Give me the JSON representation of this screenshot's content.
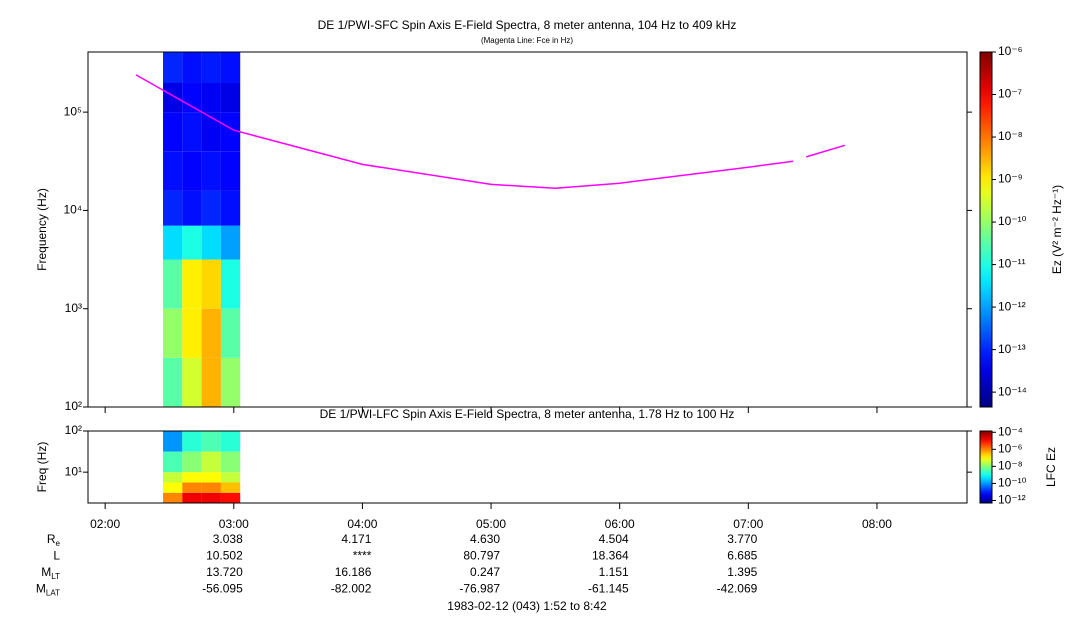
{
  "chart_data": [
    {
      "type": "heatmap",
      "title": "DE 1/PWI-SFC  Spin Axis E-Field Spectra, 8 meter antenna, 104 Hz to 409 kHz",
      "subtitle": "(Magenta Line: Fce in Hz)",
      "y_label": "Frequency (Hz)",
      "log_y": true,
      "xlim": [
        1.8667,
        8.7
      ],
      "ylim": [
        100,
        409000
      ],
      "yticks": [
        {
          "value": 100,
          "label": "10²"
        },
        {
          "value": 1000,
          "label": "10³"
        },
        {
          "value": 10000,
          "label": "10⁴"
        },
        {
          "value": 100000,
          "label": "10⁵"
        }
      ],
      "x_bins": [
        2.45,
        2.6,
        2.75,
        2.9,
        3.05
      ],
      "y_bins": [
        100,
        316,
        1000,
        3162,
        7000,
        15800,
        40000,
        100000,
        200000,
        409000
      ],
      "z": [
        [
          -10.5,
          -9.5,
          -8.5,
          -10
        ],
        [
          -10,
          -9,
          -8.5,
          -10.5
        ],
        [
          -10.5,
          -9,
          -8.8,
          -11
        ],
        [
          -11.5,
          -11,
          -11.5,
          -12
        ],
        [
          -13,
          -13.2,
          -13,
          -13.2
        ],
        [
          -13.2,
          -13.3,
          -13.2,
          -13.3
        ],
        [
          -13.3,
          -13.2,
          -13.4,
          -13.3
        ],
        [
          -13.5,
          -13.3,
          -13.4,
          -13.5
        ],
        [
          -13,
          -13.2,
          -13.1,
          -13.2
        ]
      ],
      "colorbar": {
        "label": "Ez (V² m⁻² Hz⁻¹)",
        "lim": [
          -14.35,
          -6
        ],
        "ticks": [
          {
            "value": -6,
            "label": "10⁻⁶"
          },
          {
            "value": -7,
            "label": "10⁻⁷"
          },
          {
            "value": -8,
            "label": "10⁻⁸"
          },
          {
            "value": -9,
            "label": "10⁻⁹"
          },
          {
            "value": -10,
            "label": "10⁻¹⁰"
          },
          {
            "value": -11,
            "label": "10⁻¹¹"
          },
          {
            "value": -12,
            "label": "10⁻¹²"
          },
          {
            "value": -13,
            "label": "10⁻¹³"
          },
          {
            "value": -14,
            "label": "10⁻¹⁴"
          }
        ]
      },
      "series": [
        {
          "color": "#ff00ff",
          "x": [
            2.24,
            3.0,
            4.0,
            5.0,
            5.5,
            6.0,
            7.0,
            7.35,
            7.4,
            7.45,
            7.75
          ],
          "values": [
            239000,
            65500,
            29400,
            18400,
            16800,
            18900,
            27500,
            31600,
            null,
            35000,
            46000
          ]
        }
      ]
    },
    {
      "type": "heatmap",
      "title": "DE 1/PWI-LFC  Spin Axis E-Field Spectra, 8 meter antenna, 1.78 Hz to 100 Hz",
      "y_label": "Freq (Hz)",
      "log_y": true,
      "xlim": [
        1.8667,
        8.7
      ],
      "ylim": [
        1.78,
        100
      ],
      "xticks": [
        {
          "value": 2,
          "label": "02:00"
        },
        {
          "value": 3,
          "label": "03:00"
        },
        {
          "value": 4,
          "label": "04:00"
        },
        {
          "value": 5,
          "label": "05:00"
        },
        {
          "value": 6,
          "label": "06:00"
        },
        {
          "value": 7,
          "label": "07:00"
        },
        {
          "value": 8,
          "label": "08:00"
        }
      ],
      "yticks": [
        {
          "value": 10,
          "label": "10¹"
        },
        {
          "value": 100,
          "label": "10²"
        }
      ],
      "x_bins": [
        2.45,
        2.6,
        2.75,
        2.9,
        3.05
      ],
      "y_bins": [
        1.78,
        3.16,
        5.6,
        10,
        31.6,
        100
      ],
      "z": [
        [
          -6,
          -4.8,
          -4.8,
          -5
        ],
        [
          -7,
          -6,
          -6,
          -6.5
        ],
        [
          -7.5,
          -7,
          -7,
          -7.5
        ],
        [
          -8.5,
          -8,
          -7.5,
          -8
        ],
        [
          -10,
          -8.8,
          -8.5,
          -8.8
        ]
      ],
      "colorbar": {
        "label": "LFC Ez",
        "lim": [
          -12.3,
          -3.85
        ],
        "ticks": [
          {
            "value": -4,
            "label": "10⁻⁴"
          },
          {
            "value": -6,
            "label": "10⁻⁶"
          },
          {
            "value": -8,
            "label": "10⁻⁸"
          },
          {
            "value": -10,
            "label": "10⁻¹⁰"
          },
          {
            "value": -12,
            "label": "10⁻¹²"
          }
        ]
      }
    }
  ],
  "ephemeris": [
    {
      "label": "R",
      "sub": "e",
      "values": [
        "3.038",
        "4.171",
        "4.630",
        "4.504",
        "3.770"
      ]
    },
    {
      "label": "L",
      "values": [
        "10.502",
        "****",
        "80.797",
        "18.364",
        "6.685"
      ]
    },
    {
      "label": "M",
      "sub": "LT",
      "values": [
        "13.720",
        "16.186",
        "0.247",
        "1.151",
        "1.395"
      ]
    },
    {
      "label": "M",
      "sub": "LAT",
      "values": [
        "-56.095",
        "-82.002",
        "-76.987",
        "-61.145",
        "-42.069"
      ]
    }
  ],
  "footer": "1983-02-12 (043) 1:52 to 8:42"
}
